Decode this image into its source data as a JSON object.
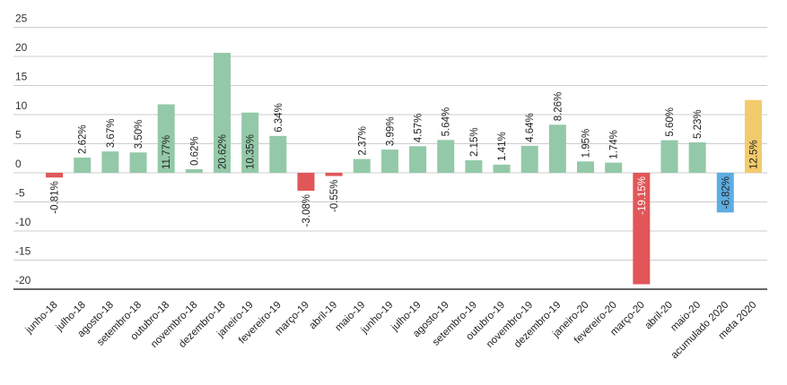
{
  "chart_data": {
    "type": "bar",
    "categories": [
      "junho-18",
      "julho-18",
      "agosto-18",
      "setembro-18",
      "outubro-18",
      "novembro-18",
      "dezembro-18",
      "janeiro-19",
      "fevereiro-19",
      "março-19",
      "abril-19",
      "maio-19",
      "junho-19",
      "julho-19",
      "agosto-19",
      "setembro-19",
      "outubro-19",
      "novembro-19",
      "dezembro-19",
      "janeiro-20",
      "fevereiro-20",
      "março-20",
      "abril-20",
      "maio-20",
      "acumulado 2020",
      "meta 2020"
    ],
    "values": [
      -0.81,
      2.62,
      3.67,
      3.5,
      11.77,
      0.62,
      20.62,
      10.35,
      6.34,
      -3.08,
      -0.55,
      2.37,
      3.99,
      4.57,
      5.64,
      2.15,
      1.41,
      4.64,
      8.26,
      1.95,
      1.74,
      -19.15,
      5.6,
      5.23,
      -6.82,
      12.5
    ],
    "data_labels": [
      "-0.81%",
      "2.62%",
      "3.67%",
      "3.50%",
      "11.77%",
      "0.62%",
      "20.62%",
      "10.35%",
      "6.34%",
      "-3.08%",
      "-0.55%",
      "2.37%",
      "3.99%",
      "4.57%",
      "5.64%",
      "2.15%",
      "1.41%",
      "4.64%",
      "8.26%",
      "1.95%",
      "1.74%",
      "-19.15%",
      "5.60%",
      "5.23%",
      "-6.82%",
      "12.5%"
    ],
    "yticks": [
      25,
      20,
      15,
      10,
      5,
      0,
      -5,
      -10,
      -15,
      -20
    ],
    "ylim": [
      -20.5,
      25
    ],
    "grid": true,
    "legend": "none",
    "title": "",
    "xlabel": "",
    "ylabel": "",
    "colors": {
      "positive": "#93c9a8",
      "negative": "#e15759",
      "accumulated": "#5dade2",
      "target": "#f2cb6c",
      "grid": "#cccccc",
      "axis": "#333333"
    }
  }
}
